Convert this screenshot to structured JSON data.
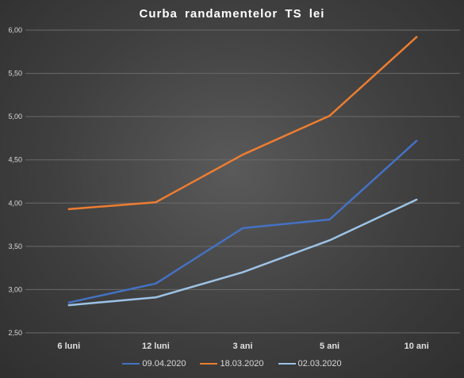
{
  "chart_data": {
    "type": "line",
    "title": "Curba randamentelor TS lei",
    "categories": [
      "6 luni",
      "12 luni",
      "3 ani",
      "5 ani",
      "10 ani"
    ],
    "ylim": [
      2.5,
      6.0
    ],
    "y_ticks": [
      "2,50",
      "3,00",
      "3,50",
      "4,00",
      "4,50",
      "5,00",
      "5,50",
      "6,00"
    ],
    "grid": true,
    "legend_position": "bottom",
    "series": [
      {
        "name": "09.04.2020",
        "color": "#4472c4",
        "values": [
          2.85,
          3.07,
          3.71,
          3.81,
          4.72
        ]
      },
      {
        "name": "18.03.2020",
        "color": "#ed7d31",
        "values": [
          3.93,
          4.01,
          4.56,
          5.01,
          5.92
        ]
      },
      {
        "name": "02.03.2020",
        "color": "#9dc3e6",
        "values": [
          2.82,
          2.91,
          3.2,
          3.57,
          4.04
        ]
      }
    ]
  }
}
